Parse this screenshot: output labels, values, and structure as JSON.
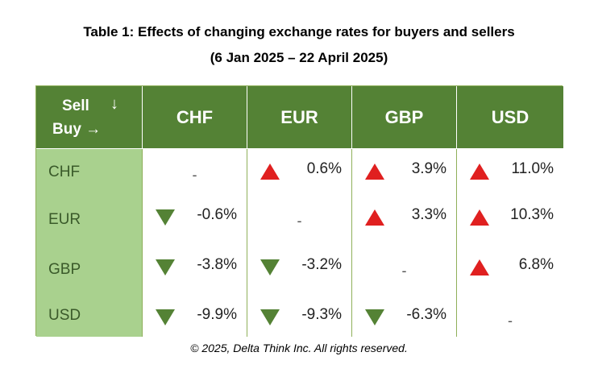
{
  "title": {
    "line1": "Table 1: Effects of changing exchange rates for buyers and sellers",
    "line2": "(6 Jan 2025 – 22 April 2025)"
  },
  "table": {
    "corner": {
      "sell_label": "Sell",
      "down_arrow": "↓",
      "buy_label": "Buy →"
    },
    "columns": [
      "CHF",
      "EUR",
      "GBP",
      "USD"
    ],
    "rows": [
      {
        "label": "CHF",
        "cells": [
          {
            "value": "-",
            "direction": "none"
          },
          {
            "value": "0.6%",
            "direction": "up"
          },
          {
            "value": "3.9%",
            "direction": "up"
          },
          {
            "value": "11.0%",
            "direction": "up"
          }
        ]
      },
      {
        "label": "EUR",
        "cells": [
          {
            "value": "-0.6%",
            "direction": "down"
          },
          {
            "value": "-",
            "direction": "none"
          },
          {
            "value": "3.3%",
            "direction": "up"
          },
          {
            "value": "10.3%",
            "direction": "up"
          }
        ]
      },
      {
        "label": "GBP",
        "cells": [
          {
            "value": "-3.8%",
            "direction": "down"
          },
          {
            "value": "-3.2%",
            "direction": "down"
          },
          {
            "value": "-",
            "direction": "none"
          },
          {
            "value": "6.8%",
            "direction": "up"
          }
        ]
      },
      {
        "label": "USD",
        "cells": [
          {
            "value": "-9.9%",
            "direction": "down"
          },
          {
            "value": "-9.3%",
            "direction": "down"
          },
          {
            "value": "-6.3%",
            "direction": "down"
          },
          {
            "value": "-",
            "direction": "none"
          }
        ]
      }
    ]
  },
  "colors": {
    "header_green": "#548235",
    "row_label_green": "#a9d18e",
    "increase_red": "#e02020",
    "decrease_green": "#548235"
  },
  "icons": {
    "increase": "triangle-up-icon",
    "decrease": "triangle-down-icon"
  },
  "footer": "© 2025, Delta Think Inc. All rights reserved."
}
